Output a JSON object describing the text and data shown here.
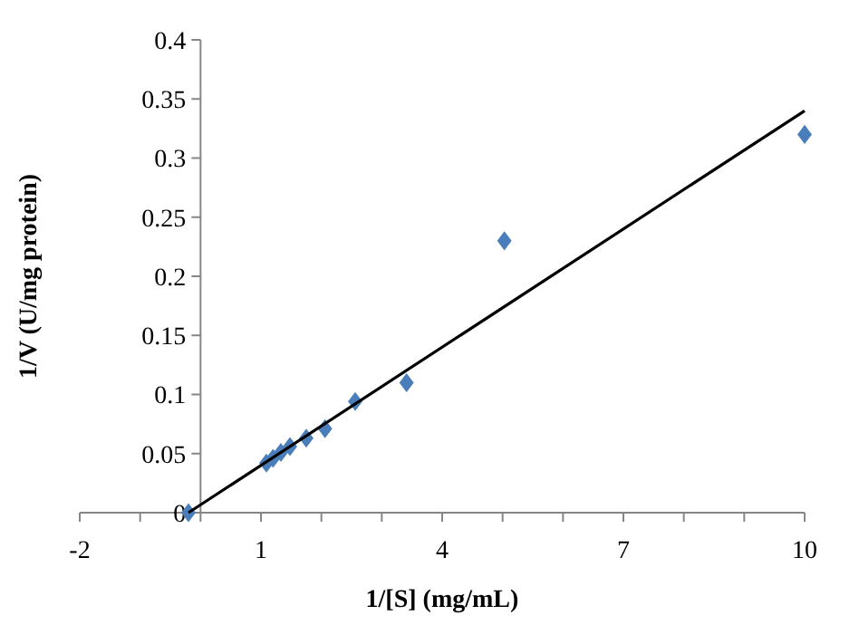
{
  "chart_data": {
    "type": "scatter",
    "xlabel": "1/[S] (mg/mL)",
    "ylabel": "1/V (U/mg protein)",
    "xlim": [
      -2,
      10
    ],
    "ylim": [
      0,
      0.4
    ],
    "xticks": [
      -2,
      {
        "value": -1,
        "label": null
      },
      {
        "value": 0,
        "label": null
      },
      1,
      {
        "value": 2,
        "label": null
      },
      {
        "value": 3,
        "label": null
      },
      4,
      {
        "value": 5,
        "label": null
      },
      {
        "value": 6,
        "label": null
      },
      7,
      {
        "value": 8,
        "label": null
      },
      {
        "value": 9,
        "label": null
      },
      10
    ],
    "yticks": [
      0,
      0.05,
      0.1,
      0.15,
      0.2,
      0.25,
      0.3,
      0.35,
      0.4
    ],
    "grid": false,
    "series": [
      {
        "marker": "diamond",
        "color": "#4a7ebb",
        "x": [
          -0.2,
          1.09,
          1.2,
          1.33,
          1.48,
          1.75,
          2.06,
          2.56,
          3.41,
          5.03,
          10
        ],
        "values": [
          0,
          0.042,
          0.046,
          0.051,
          0.056,
          0.063,
          0.071,
          0.094,
          0.11,
          0.23,
          0.32
        ]
      },
      {
        "type": "line",
        "marker": "none",
        "line_style": "solid",
        "color": "#000000",
        "x": [
          -0.2,
          10
        ],
        "values": [
          0,
          0.34
        ]
      }
    ]
  }
}
